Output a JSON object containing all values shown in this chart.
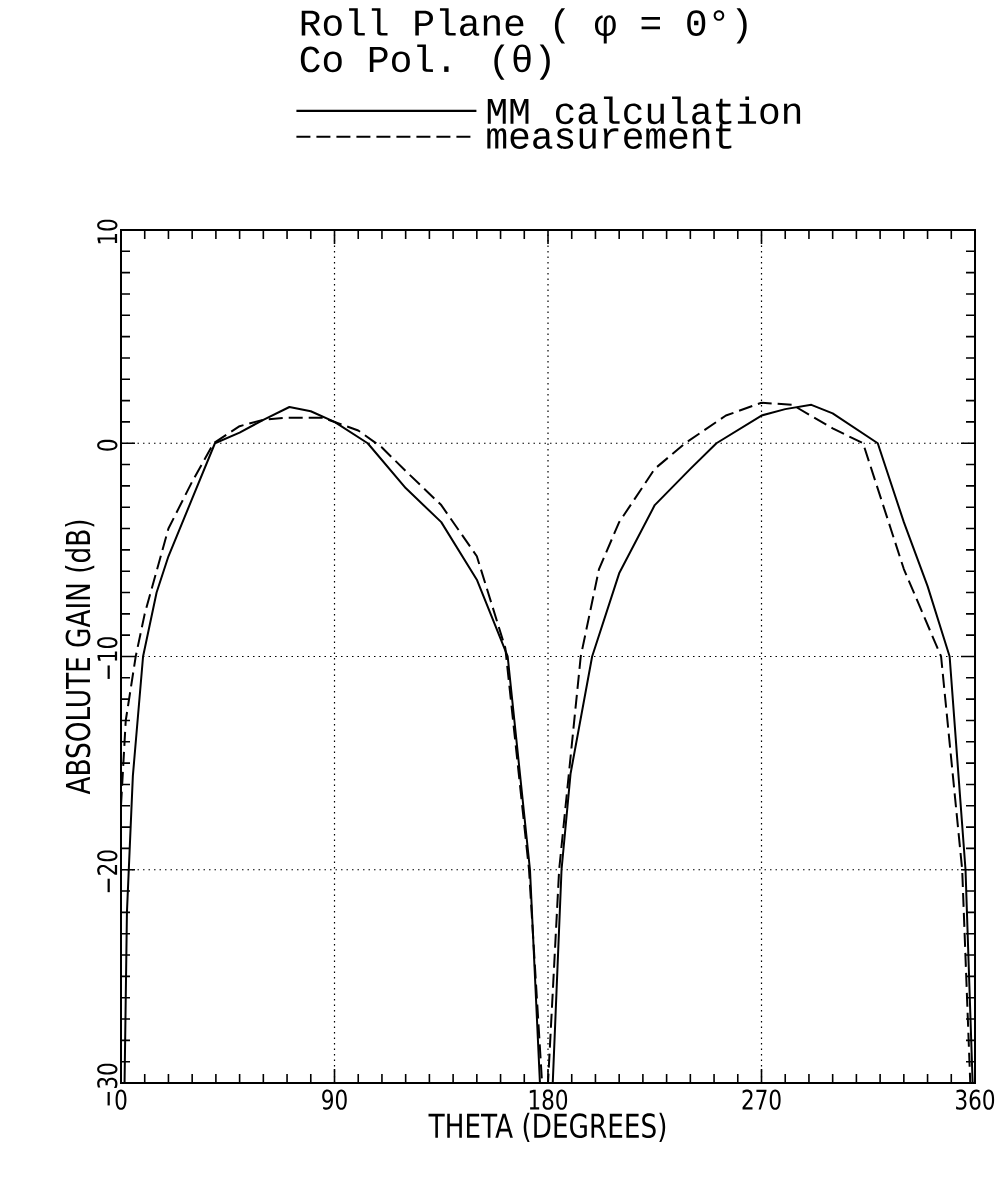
{
  "chart_data": {
    "type": "line",
    "title": "Roll Plane ( φ = 0°)",
    "subtitle": "Co Pol.   (θ)",
    "xlabel": "THETA (DEGREES)",
    "ylabel": "ABSOLUTE GAIN (dB)",
    "xlim": [
      0,
      360
    ],
    "ylim": [
      -30,
      10
    ],
    "xticks": [
      0,
      90,
      180,
      270,
      360
    ],
    "yticks": [
      {
        "value": -30,
        "label": "−30"
      },
      {
        "value": -20,
        "label": "−20"
      },
      {
        "value": -10,
        "label": "−10"
      },
      0,
      10
    ],
    "grid": true,
    "legend": "top",
    "series": [
      {
        "name": "MM calculation",
        "color": "#000000",
        "line_style": "solid",
        "x": [
          1.5,
          2.5,
          5,
          9.3,
          15,
          20,
          30,
          39.6,
          50,
          60,
          71,
          80,
          90,
          104,
          120,
          135,
          150,
          163,
          172.4,
          176.6,
          182,
          185.7,
          189.5,
          198.6,
          210,
          225,
          240,
          251,
          270,
          280,
          291,
          300,
          319,
          330,
          340,
          349.3,
          356,
          359
        ],
        "values": [
          -30,
          -22,
          -15.6,
          -10,
          -7,
          -5.3,
          -2.6,
          0,
          0.5,
          1.1,
          1.7,
          1.5,
          1.0,
          0,
          -2.1,
          -3.7,
          -6.4,
          -10,
          -20,
          -30,
          -30,
          -20,
          -15.5,
          -10,
          -6.1,
          -2.9,
          -1.2,
          0,
          1.3,
          1.6,
          1.8,
          1.4,
          0,
          -3.7,
          -6.7,
          -10,
          -20,
          -30
        ]
      },
      {
        "name": "measurement",
        "color": "#000000",
        "line_style": "dashed",
        "x": [
          0,
          2,
          6.2,
          10,
          20,
          30,
          39,
          50,
          60,
          70,
          85,
          100,
          110,
          120,
          135,
          150,
          162,
          172,
          177.5,
          180,
          184.7,
          193.8,
          201.5,
          210,
          225,
          237.8,
          255,
          270,
          283,
          300,
          312.8,
          330,
          345.7,
          354.6,
          358
        ],
        "values": [
          -17,
          -13,
          -10,
          -8,
          -4,
          -1.8,
          0,
          0.8,
          1.1,
          1.2,
          1.2,
          0.6,
          -0.2,
          -1.3,
          -2.9,
          -5.3,
          -9.6,
          -20,
          -30,
          -30,
          -20,
          -10,
          -5.9,
          -3.7,
          -1.2,
          0,
          1.3,
          1.9,
          1.8,
          0.7,
          0,
          -5.9,
          -10,
          -20,
          -30
        ]
      }
    ]
  }
}
